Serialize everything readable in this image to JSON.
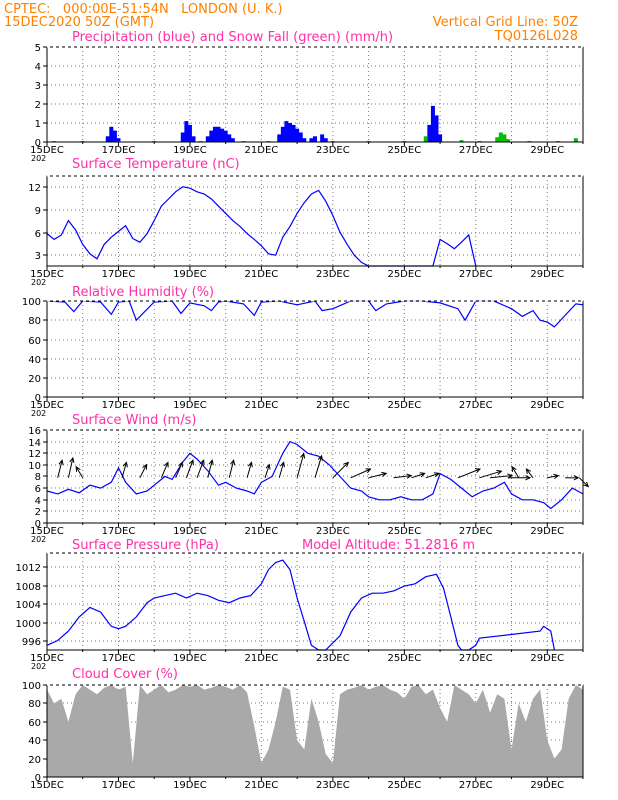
{
  "header": {
    "line1": "CPTEC:   000:00E-51:54N   LONDON (U. K.)",
    "line2": "15DEC2020 50Z (GMT)",
    "grid_note": "Vertical Grid Line: 50Z",
    "run_id": "TQ0126L028"
  },
  "x_axis": {
    "ticks": [
      "15DEC",
      "17DEC",
      "19DEC",
      "21DEC",
      "23DEC",
      "25DEC",
      "27DEC",
      "29DEC"
    ],
    "cut_label": "202"
  },
  "chart_data": [
    {
      "type": "bar",
      "title": "Precipitation (blue) and Snow Fall (green) (mm/h)",
      "ylim": [
        0,
        5
      ],
      "yticks": [
        "5",
        "4",
        "3",
        "2",
        "1",
        "0"
      ],
      "series": [
        {
          "name": "Precipitation",
          "color": "#0000ff",
          "x": [
            16.7,
            16.8,
            16.9,
            17.0,
            18.8,
            18.9,
            19.0,
            19.1,
            19.5,
            19.6,
            19.7,
            19.8,
            19.9,
            20.0,
            20.1,
            20.2,
            21.5,
            21.6,
            21.7,
            21.8,
            21.9,
            22.0,
            22.1,
            22.2,
            22.4,
            22.5,
            22.7,
            22.8,
            25.7,
            25.8,
            25.9,
            26.0
          ],
          "values": [
            0.3,
            0.8,
            0.6,
            0.2,
            0.5,
            1.1,
            0.9,
            0.3,
            0.3,
            0.6,
            0.8,
            0.8,
            0.7,
            0.6,
            0.4,
            0.2,
            0.4,
            0.8,
            1.1,
            1.0,
            0.9,
            0.7,
            0.5,
            0.2,
            0.2,
            0.3,
            0.4,
            0.2,
            0.9,
            1.9,
            1.4,
            0.4
          ]
        },
        {
          "name": "Snow Fall",
          "color": "#00c000",
          "x": [
            15.2,
            16.0,
            17.0,
            18.0,
            19.3,
            20.5,
            21.2,
            23.0,
            24.0,
            25.0,
            25.6,
            26.6,
            27.1,
            27.6,
            27.7,
            27.8,
            27.9,
            28.5,
            29.3,
            29.8
          ],
          "values": [
            0.05,
            0.05,
            0.05,
            0.05,
            0.05,
            0.05,
            0.05,
            0.05,
            0.05,
            0.05,
            0.3,
            0.1,
            0.05,
            0.25,
            0.5,
            0.4,
            0.15,
            0.05,
            0.05,
            0.2
          ]
        }
      ]
    },
    {
      "type": "line",
      "title": "Surface Temperature (nC)",
      "ylim": [
        1.5,
        14
      ],
      "yticks": [
        "12",
        "9",
        "6",
        "3"
      ],
      "series": [
        {
          "name": "",
          "color": "#0000ff",
          "x": [
            15.0,
            15.2,
            15.4,
            15.6,
            15.8,
            16.0,
            16.2,
            16.4,
            16.6,
            16.8,
            17.0,
            17.2,
            17.4,
            17.6,
            17.8,
            18.0,
            18.2,
            18.4,
            18.6,
            18.8,
            19.0,
            19.2,
            19.4,
            19.6,
            19.8,
            20.0,
            20.2,
            20.4,
            20.6,
            20.8,
            21.0,
            21.2,
            21.4,
            21.6,
            21.8,
            22.0,
            22.2,
            22.4,
            22.6,
            22.8,
            23.0,
            23.2,
            23.4,
            23.6,
            23.8,
            24.0,
            25.8,
            26.0,
            26.2,
            26.4,
            26.6,
            26.8,
            27.0
          ],
          "values": [
            6.0,
            5.2,
            5.8,
            7.8,
            6.5,
            4.5,
            3.2,
            2.5,
            4.5,
            5.5,
            6.3,
            7.1,
            5.3,
            4.8,
            6.0,
            7.8,
            9.8,
            10.8,
            11.8,
            12.5,
            12.3,
            11.8,
            11.5,
            10.8,
            9.8,
            8.8,
            7.8,
            7.0,
            6.0,
            5.2,
            4.3,
            3.2,
            3.0,
            5.5,
            7.0,
            8.8,
            10.3,
            11.5,
            12.0,
            10.5,
            8.5,
            6.2,
            4.5,
            3.0,
            2.0,
            1.5,
            1.5,
            5.2,
            4.6,
            3.9,
            4.8,
            5.8,
            1.5
          ]
        }
      ]
    },
    {
      "type": "line",
      "title": "Relative Humidity (%)",
      "ylim": [
        0,
        100
      ],
      "yticks": [
        "100",
        "80",
        "60",
        "40",
        "20",
        "0"
      ],
      "series": [
        {
          "name": "",
          "color": "#0000ff",
          "x": [
            15.0,
            15.5,
            15.75,
            16.0,
            16.5,
            16.8,
            17.0,
            17.3,
            17.5,
            18.0,
            18.5,
            18.75,
            19.0,
            19.4,
            19.6,
            19.8,
            20.0,
            20.5,
            20.8,
            21.0,
            21.5,
            22.0,
            22.5,
            22.7,
            23.0,
            23.5,
            24.0,
            24.2,
            24.5,
            25.0,
            25.5,
            26.0,
            26.5,
            26.7,
            27.0,
            27.5,
            28.0,
            28.3,
            28.6,
            28.8,
            29.0,
            29.2,
            29.5,
            29.8,
            30.0
          ],
          "values": [
            100,
            99,
            89,
            100,
            99,
            86,
            99,
            100,
            80,
            99,
            100,
            87,
            98,
            95,
            90,
            99,
            100,
            97,
            85,
            99,
            100,
            96,
            100,
            90,
            92,
            100,
            100,
            90,
            97,
            100,
            100,
            98,
            92,
            80,
            100,
            100,
            92,
            84,
            90,
            80,
            78,
            73,
            85,
            97,
            96
          ]
        }
      ]
    },
    {
      "type": "line",
      "title": "Surface Wind (m/s)",
      "ylim": [
        0,
        16
      ],
      "yticks": [
        "16",
        "14",
        "12",
        "10",
        "8",
        "6",
        "4",
        "2",
        "0"
      ],
      "series": [
        {
          "name": "",
          "color": "#0000ff",
          "x": [
            15.0,
            15.3,
            15.6,
            15.9,
            16.2,
            16.5,
            16.8,
            17.0,
            17.2,
            17.5,
            17.8,
            18.0,
            18.3,
            18.5,
            18.8,
            19.0,
            19.2,
            19.5,
            19.8,
            20.0,
            20.3,
            20.6,
            20.8,
            21.0,
            21.3,
            21.6,
            21.8,
            22.0,
            22.3,
            22.6,
            22.9,
            23.2,
            23.5,
            23.8,
            24.0,
            24.3,
            24.6,
            24.9,
            25.2,
            25.5,
            25.8,
            26.0,
            26.3,
            26.6,
            26.9,
            27.2,
            27.5,
            27.8,
            28.0,
            28.3,
            28.6,
            28.9,
            29.1,
            29.4,
            29.7,
            30.0
          ],
          "values": [
            5.5,
            5.0,
            5.8,
            5.2,
            6.5,
            6.0,
            7.0,
            9.5,
            7.0,
            5.0,
            5.5,
            6.5,
            8.0,
            7.5,
            10.5,
            12.0,
            11.0,
            9.0,
            6.5,
            7.0,
            6.0,
            5.5,
            5.0,
            7.0,
            8.0,
            12.0,
            14.0,
            13.5,
            12.0,
            11.5,
            10.0,
            8.0,
            6.0,
            5.5,
            4.5,
            4.0,
            4.0,
            4.5,
            4.0,
            4.0,
            5.0,
            8.5,
            7.5,
            6.0,
            4.5,
            5.5,
            6.0,
            7.0,
            5.0,
            4.0,
            4.0,
            3.5,
            2.5,
            4.0,
            6.0,
            5.0
          ]
        }
      ],
      "wind_vectors": [
        [
          15.3,
          2,
          8
        ],
        [
          15.6,
          2,
          9
        ],
        [
          16.0,
          -3,
          5
        ],
        [
          17.1,
          2,
          7
        ],
        [
          17.6,
          3,
          6
        ],
        [
          18.2,
          3,
          7
        ],
        [
          18.6,
          3,
          7
        ],
        [
          18.9,
          3,
          8
        ],
        [
          19.2,
          3,
          8
        ],
        [
          19.5,
          2,
          8
        ],
        [
          20.1,
          2,
          8
        ],
        [
          20.6,
          2,
          7
        ],
        [
          21.1,
          2,
          6
        ],
        [
          21.5,
          2,
          7
        ],
        [
          22.0,
          3,
          11
        ],
        [
          22.5,
          3,
          10
        ],
        [
          23.0,
          7,
          7
        ],
        [
          23.5,
          9,
          4
        ],
        [
          24.0,
          8,
          2
        ],
        [
          24.7,
          8,
          1
        ],
        [
          25.2,
          6,
          2
        ],
        [
          25.6,
          6,
          2
        ],
        [
          26.5,
          10,
          4
        ],
        [
          27.1,
          10,
          3
        ],
        [
          27.4,
          10,
          1
        ],
        [
          27.9,
          10,
          0
        ],
        [
          28.2,
          -3,
          5
        ],
        [
          28.6,
          -3,
          4
        ],
        [
          29.0,
          5,
          1
        ],
        [
          29.5,
          6,
          0
        ],
        [
          29.9,
          4,
          -4
        ]
      ]
    },
    {
      "type": "line",
      "title": "Surface Pressure (hPa)",
      "annotation": "Model Altitude: 51.2816 m",
      "ylim": [
        994,
        1014.5
      ],
      "yticks": [
        "1012",
        "1008",
        "1004",
        "1000",
        "996"
      ],
      "series": [
        {
          "name": "",
          "color": "#0000ff",
          "x": [
            15.0,
            15.3,
            15.6,
            15.9,
            16.2,
            16.5,
            16.8,
            17.0,
            17.2,
            17.5,
            17.8,
            18.0,
            18.3,
            18.6,
            18.9,
            19.2,
            19.5,
            19.8,
            20.1,
            20.4,
            20.7,
            21.0,
            21.2,
            21.4,
            21.6,
            21.8,
            22.0,
            22.2,
            22.4,
            22.6,
            22.8,
            23.2,
            23.5,
            23.8,
            24.1,
            24.4,
            24.7,
            25.0,
            25.3,
            25.6,
            25.9,
            26.1,
            26.3,
            26.5,
            26.6,
            26.8,
            27.0,
            27.1,
            28.8,
            28.9,
            29.1,
            29.2
          ],
          "values": [
            995.0,
            996.0,
            998.0,
            1001.0,
            1003.0,
            1002.0,
            999.0,
            998.5,
            999.0,
            1001.0,
            1004.0,
            1005.0,
            1005.5,
            1006.0,
            1005.0,
            1006.0,
            1005.5,
            1004.5,
            1004.0,
            1005.0,
            1005.5,
            1008.0,
            1011.0,
            1012.5,
            1013.0,
            1011.0,
            1005.0,
            1000.0,
            995.0,
            994.0,
            994.0,
            997.0,
            1002.0,
            1005.0,
            1006.0,
            1006.0,
            1006.5,
            1007.5,
            1008.0,
            1009.5,
            1010.0,
            1007.0,
            1001.0,
            995.0,
            994.0,
            994.0,
            995.0,
            996.5,
            998.0,
            999.0,
            998.0,
            994.0
          ]
        }
      ]
    },
    {
      "type": "area",
      "title": "Cloud Cover (%)",
      "ylim": [
        0,
        100
      ],
      "yticks": [
        "100",
        "80",
        "60",
        "40",
        "20",
        "0"
      ],
      "color": "#a9a9a9",
      "series": [
        {
          "name": "",
          "x": [
            15.0,
            15.2,
            15.4,
            15.6,
            15.8,
            16.0,
            16.2,
            16.4,
            16.6,
            16.8,
            17.0,
            17.2,
            17.4,
            17.6,
            17.8,
            18.0,
            18.2,
            18.4,
            18.6,
            18.8,
            19.0,
            19.2,
            19.4,
            19.6,
            19.8,
            20.0,
            20.2,
            20.4,
            20.6,
            20.8,
            21.0,
            21.2,
            21.4,
            21.6,
            21.8,
            22.0,
            22.2,
            22.4,
            22.6,
            22.8,
            23.0,
            23.2,
            23.4,
            23.6,
            23.8,
            24.0,
            24.2,
            24.4,
            24.6,
            24.8,
            25.0,
            25.2,
            25.4,
            25.6,
            25.8,
            26.0,
            26.2,
            26.4,
            26.6,
            26.8,
            27.0,
            27.2,
            27.4,
            27.6,
            27.8,
            28.0,
            28.2,
            28.4,
            28.6,
            28.8,
            29.0,
            29.2,
            29.4,
            29.6,
            29.8,
            30.0
          ],
          "values": [
            95,
            80,
            85,
            60,
            90,
            100,
            95,
            90,
            97,
            100,
            95,
            98,
            15,
            100,
            90,
            95,
            100,
            92,
            95,
            100,
            98,
            100,
            95,
            97,
            100,
            98,
            95,
            100,
            92,
            55,
            15,
            30,
            60,
            98,
            95,
            40,
            30,
            85,
            60,
            25,
            15,
            90,
            95,
            97,
            100,
            95,
            98,
            100,
            95,
            92,
            85,
            98,
            100,
            90,
            95,
            75,
            60,
            100,
            95,
            90,
            80,
            95,
            70,
            90,
            85,
            30,
            80,
            60,
            85,
            95,
            40,
            20,
            30,
            85,
            100,
            95
          ]
        }
      ]
    }
  ]
}
